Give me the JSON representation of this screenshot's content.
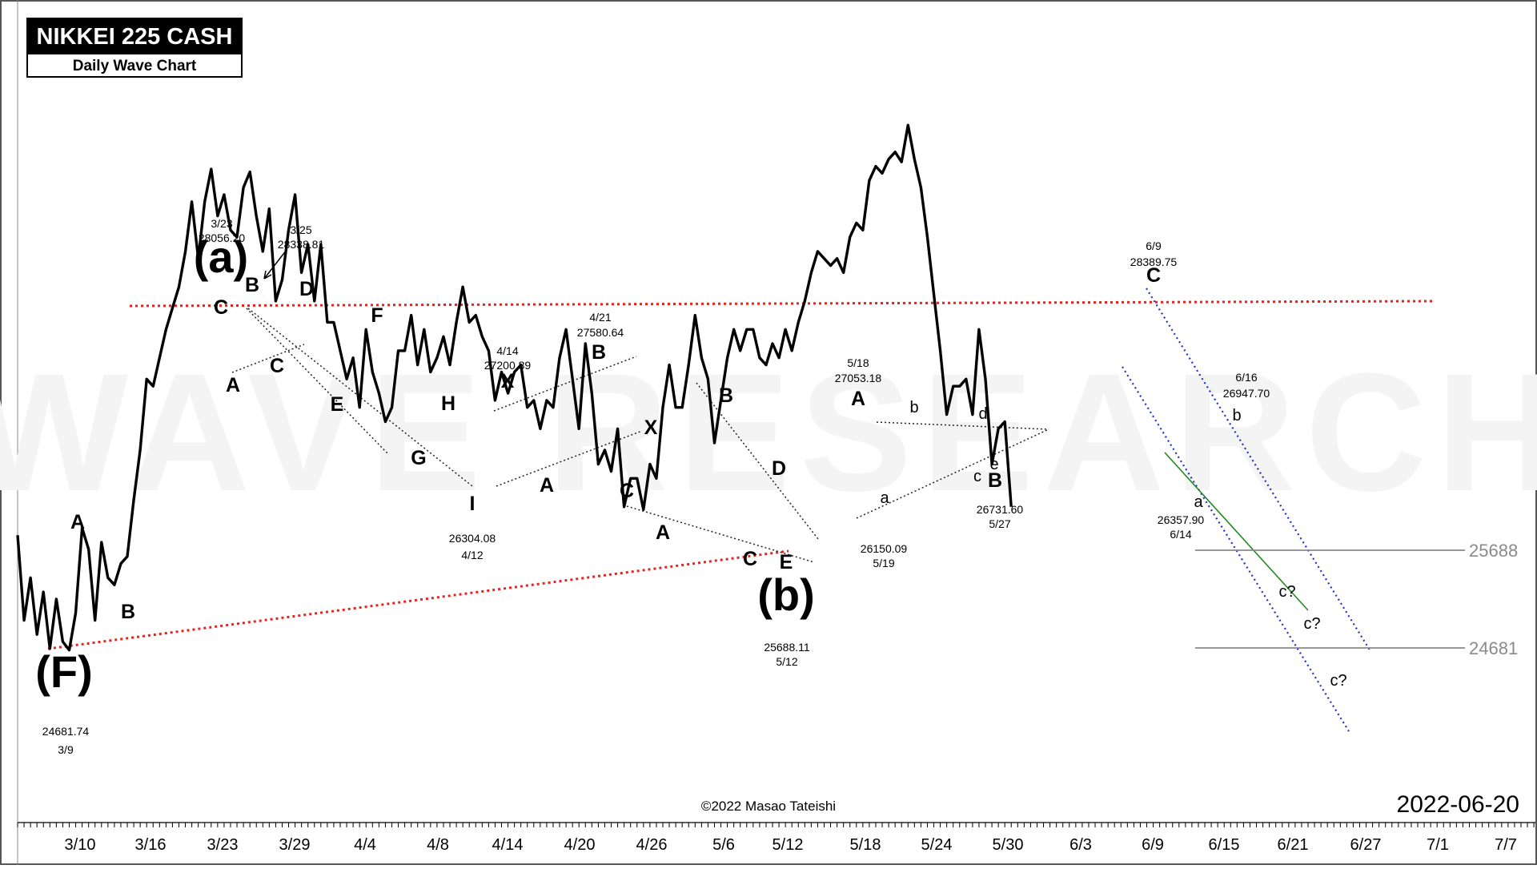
{
  "chart_data": {
    "type": "line",
    "title": "NIKKEI 225 CASH",
    "subtitle": "Daily Wave Chart",
    "date": "2022-06-20",
    "copyright": "©2022 Masao Tateishi",
    "watermark": "WAVE RESEARCH",
    "x_tick_labels": [
      "3/10",
      "3/16",
      "3/23",
      "3/29",
      "4/4",
      "4/8",
      "4/14",
      "4/20",
      "4/26",
      "5/6",
      "5/12",
      "5/18",
      "5/24",
      "5/30",
      "6/3",
      "6/9",
      "6/15",
      "6/21",
      "6/27",
      "7/1",
      "7/7"
    ],
    "series": [
      {
        "values": [
          25500,
          24900,
          25200,
          24800,
          25100,
          24700,
          25050,
          24750,
          24690,
          24950,
          25550,
          25400,
          24900,
          25450,
          25200,
          25150,
          25300,
          25350,
          25750,
          26100,
          26600,
          26550,
          26750,
          26950,
          27100,
          27250,
          27500,
          27850,
          27450,
          27850,
          28080,
          27750,
          27900,
          27650,
          27600,
          27950,
          28060,
          27750,
          27500,
          27800,
          27150,
          27300,
          27650,
          27900,
          27350,
          27550,
          27150,
          27550,
          27000,
          27000,
          26800,
          26600,
          26750,
          26400,
          26950,
          26650,
          26500,
          26300,
          26400,
          26800,
          26800,
          27050,
          26700,
          26950,
          26650,
          26750,
          26900,
          26700,
          27000,
          27250,
          27000,
          27050,
          26900,
          26800,
          26450,
          26650,
          26500,
          26650,
          26700,
          26400,
          26450,
          26250,
          26450,
          26400,
          26750,
          26950,
          26600,
          26250,
          26850,
          26500,
          26000,
          26100,
          25950,
          26250,
          25700,
          25900,
          25900,
          25680,
          26000,
          25900,
          26400,
          26700,
          26400,
          26400,
          26700,
          27050,
          26750,
          26600,
          26150,
          26450,
          26750,
          26950,
          26800,
          26950,
          26950,
          26750,
          26700,
          26850,
          26750,
          26950,
          26800,
          27000,
          27150,
          27350,
          27500,
          27450,
          27400,
          27450,
          27350,
          27600,
          27700,
          27650,
          28000,
          28100,
          28050,
          28150,
          28200,
          28130,
          28390,
          28150,
          27950,
          27600,
          27200,
          26800,
          26350,
          26550,
          26550,
          26600,
          26350,
          26950,
          26600,
          26000,
          26250,
          26300,
          25700
        ],
        "dates_covered": "3/8 – 6/20"
      }
    ],
    "wave_labels": {
      "main": [
        "(F)",
        "(a)",
        "(b)"
      ],
      "large": [
        "A",
        "B",
        "A",
        "B",
        "C",
        "D",
        "C",
        "A",
        "C",
        "E",
        "F",
        "G",
        "H",
        "I",
        "X",
        "A",
        "B",
        "X",
        "C",
        "A",
        "B",
        "C",
        "D",
        "E",
        "A",
        "B",
        "C",
        "C"
      ],
      "small": [
        "b",
        "a",
        "d",
        "c",
        "e",
        "b",
        "a",
        "c?",
        "c?",
        "c?"
      ]
    },
    "annotations": [
      {
        "date": "3/9",
        "value": "24681.74"
      },
      {
        "date": "3/23",
        "value": "28056.20"
      },
      {
        "date": "3/25",
        "value": "28338.81"
      },
      {
        "date": "4/12",
        "value": "26304.08"
      },
      {
        "date": "4/14",
        "value": "27200.89"
      },
      {
        "date": "4/21",
        "value": "27580.64"
      },
      {
        "date": "5/12",
        "value": "25688.11"
      },
      {
        "date": "5/18",
        "value": "27053.18"
      },
      {
        "date": "5/19",
        "value": "26150.09"
      },
      {
        "date": "5/27",
        "value": "26731.60"
      },
      {
        "date": "6/9",
        "value": "28389.75"
      },
      {
        "date": "6/14",
        "value": "26357.90"
      },
      {
        "date": "6/16",
        "value": "26947.70"
      }
    ],
    "levels": [
      "25688",
      "24681"
    ],
    "colors": {
      "price": "#000000",
      "resistance": "#e8231e",
      "channel": "#2030c8",
      "trend": "#1f8a1f",
      "level": "#8a8a8a",
      "watermark": "#f2f2f2"
    },
    "grid": false
  }
}
